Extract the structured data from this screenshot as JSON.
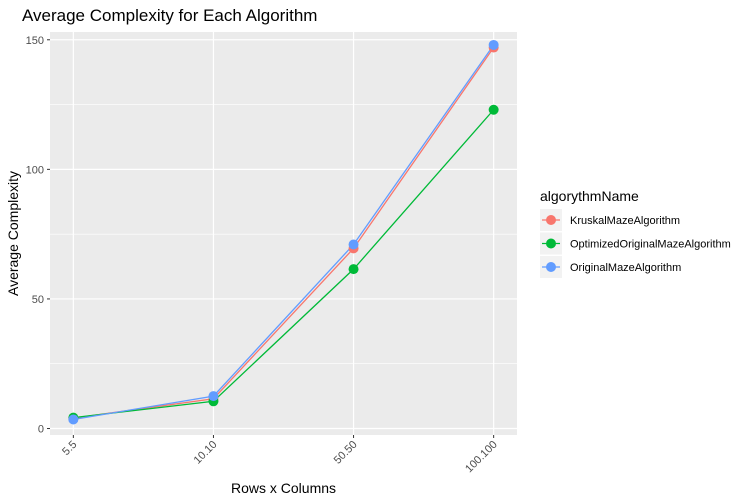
{
  "chart_data": {
    "type": "line",
    "title": "Average Complexity for Each Algorithm",
    "xlabel": "Rows x Columns",
    "ylabel": "Average Complexity",
    "categories": [
      "5.5",
      "10.10",
      "50.50",
      "100.100"
    ],
    "ylim": [
      -2.5,
      153
    ],
    "yticks": [
      0,
      50,
      100,
      150
    ],
    "y_tick_labels": [
      "0",
      "50",
      "100",
      "150"
    ],
    "grid": true,
    "legend_position": "right",
    "legend_title": "algorythmName",
    "series": [
      {
        "name": "KruskalMazeAlgorithm",
        "color": "#F8766D",
        "values": [
          4.0,
          11.5,
          69.5,
          147.0
        ]
      },
      {
        "name": "OptimizedOriginalMazeAlgorithm",
        "color": "#00BA38",
        "values": [
          4.2,
          10.5,
          61.5,
          123.0
        ]
      },
      {
        "name": "OriginalMazeAlgorithm",
        "color": "#619CFF",
        "values": [
          3.5,
          12.5,
          71.0,
          148.0
        ]
      }
    ]
  }
}
